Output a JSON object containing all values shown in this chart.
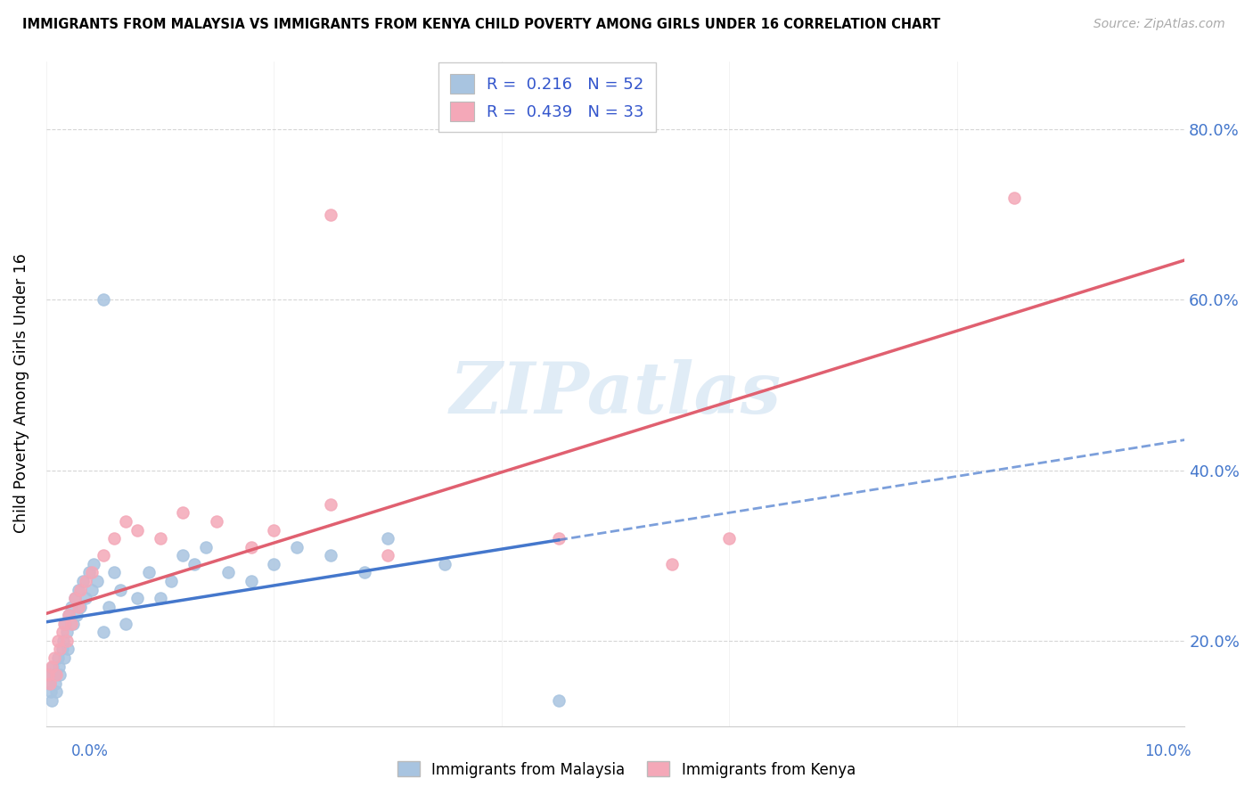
{
  "title": "IMMIGRANTS FROM MALAYSIA VS IMMIGRANTS FROM KENYA CHILD POVERTY AMONG GIRLS UNDER 16 CORRELATION CHART",
  "source": "Source: ZipAtlas.com",
  "ylabel": "Child Poverty Among Girls Under 16",
  "xlim": [
    0.0,
    10.0
  ],
  "ylim": [
    10.0,
    88.0
  ],
  "ytick_vals": [
    20.0,
    40.0,
    60.0,
    80.0
  ],
  "malaysia_color": "#a8c4e0",
  "kenya_color": "#f4a8b8",
  "malaysia_line_color": "#4477cc",
  "kenya_line_color": "#e06070",
  "malaysia_label": "Immigrants from Malaysia",
  "kenya_label": "Immigrants from Kenya",
  "malaysia_R": 0.216,
  "malaysia_N": 52,
  "kenya_R": 0.439,
  "kenya_N": 33,
  "watermark": "ZIPatlas",
  "malaysia_x": [
    0.02,
    0.03,
    0.04,
    0.05,
    0.06,
    0.07,
    0.08,
    0.09,
    0.1,
    0.11,
    0.12,
    0.14,
    0.15,
    0.16,
    0.17,
    0.18,
    0.19,
    0.2,
    0.22,
    0.24,
    0.25,
    0.27,
    0.28,
    0.3,
    0.32,
    0.35,
    0.38,
    0.4,
    0.42,
    0.45,
    0.5,
    0.55,
    0.6,
    0.65,
    0.7,
    0.8,
    0.9,
    1.0,
    1.1,
    1.2,
    1.3,
    1.4,
    1.6,
    1.8,
    2.0,
    2.2,
    2.5,
    2.8,
    3.0,
    3.5,
    0.5,
    4.5
  ],
  "malaysia_y": [
    16,
    15,
    14,
    13,
    17,
    16,
    15,
    14,
    18,
    17,
    16,
    19,
    20,
    18,
    22,
    21,
    19,
    23,
    24,
    22,
    25,
    23,
    26,
    24,
    27,
    25,
    28,
    26,
    29,
    27,
    21,
    24,
    28,
    26,
    22,
    25,
    28,
    25,
    27,
    30,
    29,
    31,
    28,
    27,
    29,
    31,
    30,
    28,
    32,
    29,
    60,
    13
  ],
  "kenya_x": [
    0.02,
    0.03,
    0.05,
    0.07,
    0.09,
    0.1,
    0.12,
    0.14,
    0.16,
    0.18,
    0.2,
    0.22,
    0.25,
    0.28,
    0.3,
    0.35,
    0.4,
    0.5,
    0.6,
    0.7,
    0.8,
    1.0,
    1.2,
    1.5,
    1.8,
    2.0,
    2.5,
    3.0,
    4.5,
    5.5,
    6.0,
    8.5,
    2.5
  ],
  "kenya_y": [
    16,
    15,
    17,
    18,
    16,
    20,
    19,
    21,
    22,
    20,
    23,
    22,
    25,
    24,
    26,
    27,
    28,
    30,
    32,
    34,
    33,
    32,
    35,
    34,
    31,
    33,
    36,
    30,
    32,
    29,
    32,
    72,
    70
  ]
}
